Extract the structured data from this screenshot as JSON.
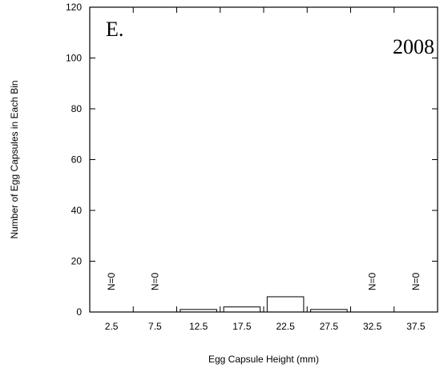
{
  "chart_data": {
    "type": "bar",
    "panel_label": "E.",
    "year_label": "2008",
    "xlabel": "Egg Capsule Height (mm)",
    "ylabel": "Number of Egg Capsules in Each Bin",
    "ylim": [
      0,
      120
    ],
    "yticks": [
      0,
      20,
      40,
      60,
      80,
      100,
      120
    ],
    "grid": false,
    "categories": [
      "2.5",
      "7.5",
      "12.5",
      "17.5",
      "22.5",
      "27.5",
      "32.5",
      "37.5"
    ],
    "values": [
      0,
      0,
      1,
      2,
      6,
      1,
      0,
      0
    ],
    "bar_labels": [
      "N=0",
      "N=0",
      "",
      "",
      "",
      "",
      "N=0",
      "N=0"
    ]
  }
}
